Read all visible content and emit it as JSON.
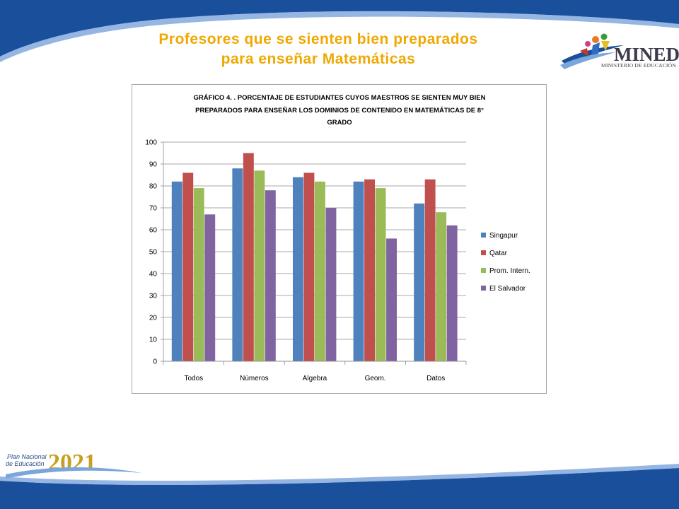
{
  "slide": {
    "title_line1": "Profesores que se sienten bien preparados",
    "title_line2": "para enseñar Matemáticas",
    "logo_text": "MINED",
    "logo_subtext": "MINISTERIO DE EDUCACIÓN",
    "footer_logo_line1": "Plan Nacional",
    "footer_logo_line2": "de Educación",
    "footer_logo_year": "2021",
    "colors": {
      "band": "#1a4f9c",
      "title": "#f0a800"
    }
  },
  "chart_data": {
    "type": "bar",
    "title_lines": [
      "GRÁFICO 4. . PORCENTAJE DE ESTUDIANTES  CUYOS MAESTROS  SE SIENTEN MUY BIEN",
      "PREPARADOS PARA ENSEÑAR LOS DOMINIOS DE CONTENIDO EN MATEMÁTICAS  DE 8°",
      "GRADO"
    ],
    "categories": [
      "Todos",
      "Números",
      "Algebra",
      "Geom.",
      "Datos"
    ],
    "series": [
      {
        "name": "Singapur",
        "color": "#4f81bd",
        "values": [
          82,
          88,
          84,
          82,
          72
        ]
      },
      {
        "name": "Qatar",
        "color": "#c0504d",
        "values": [
          86,
          95,
          86,
          83,
          83
        ]
      },
      {
        "name": "Prom. Intern.",
        "color": "#9bbb59",
        "values": [
          79,
          87,
          82,
          79,
          68
        ]
      },
      {
        "name": "El Salvador",
        "color": "#8064a2",
        "values": [
          67,
          78,
          70,
          56,
          62
        ]
      }
    ],
    "ylim": [
      0,
      100
    ],
    "yticks": [
      0,
      10,
      20,
      30,
      40,
      50,
      60,
      70,
      80,
      90,
      100
    ],
    "grid": true,
    "legend": "right"
  }
}
